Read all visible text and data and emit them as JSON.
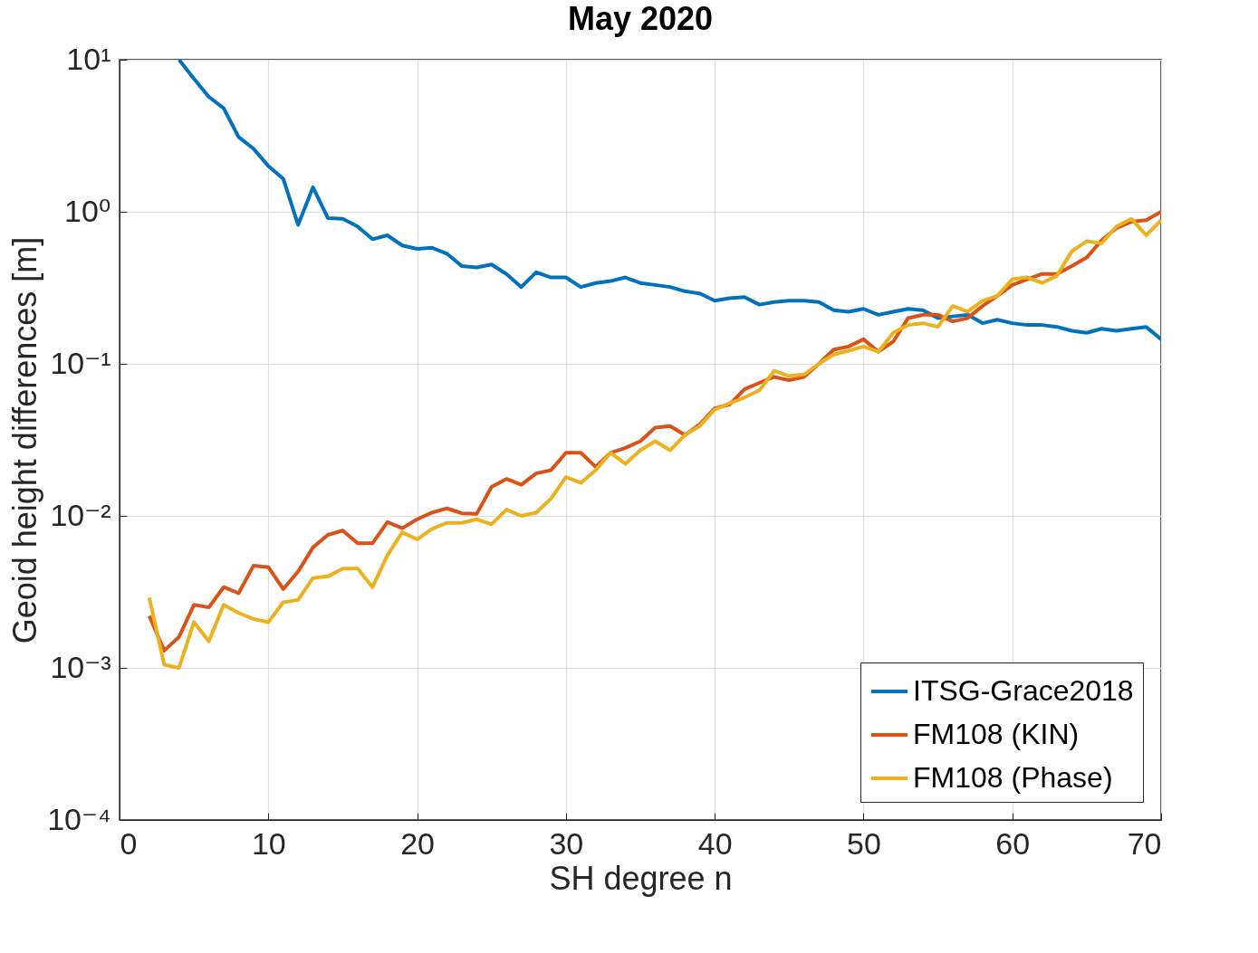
{
  "chart_data": {
    "type": "line",
    "title": "May 2020",
    "xlabel": "SH degree n",
    "ylabel": "Geoid height differences [m]",
    "x": [
      2,
      3,
      4,
      5,
      6,
      7,
      8,
      9,
      10,
      11,
      12,
      13,
      14,
      15,
      16,
      17,
      18,
      19,
      20,
      21,
      22,
      23,
      24,
      25,
      26,
      27,
      28,
      29,
      30,
      31,
      32,
      33,
      34,
      35,
      36,
      37,
      38,
      39,
      40,
      41,
      42,
      43,
      44,
      45,
      46,
      47,
      48,
      49,
      50,
      51,
      52,
      53,
      54,
      55,
      56,
      57,
      58,
      59,
      60,
      61,
      62,
      63,
      64,
      65,
      66,
      67,
      68,
      69,
      70
    ],
    "series": [
      {
        "name": "ITSG-Grace2018",
        "color": "#0072bd",
        "values": [
          null,
          null,
          10,
          7.5,
          5.7,
          4.8,
          3.1,
          2.6,
          2.0,
          1.65,
          0.82,
          1.45,
          0.91,
          0.9,
          0.8,
          0.66,
          0.7,
          0.6,
          0.57,
          0.58,
          0.53,
          0.44,
          0.43,
          0.45,
          0.39,
          0.32,
          0.4,
          0.37,
          0.37,
          0.32,
          0.34,
          0.35,
          0.37,
          0.34,
          0.33,
          0.32,
          0.3,
          0.29,
          0.26,
          0.27,
          0.275,
          0.245,
          0.255,
          0.26,
          0.26,
          0.255,
          0.225,
          0.22,
          0.23,
          0.21,
          0.22,
          0.23,
          0.225,
          0.2,
          0.205,
          0.21,
          0.185,
          0.195,
          0.185,
          0.18,
          0.18,
          0.175,
          0.165,
          0.16,
          0.17,
          0.165,
          0.17,
          0.175,
          0.145
        ]
      },
      {
        "name": "FM108 (KIN)",
        "color": "#d95319",
        "values": [
          0.0022,
          0.0013,
          0.0016,
          0.0026,
          0.0025,
          0.0034,
          0.0031,
          0.0047,
          0.0046,
          0.0033,
          0.0043,
          0.0062,
          0.0075,
          0.008,
          0.0066,
          0.0066,
          0.0091,
          0.0083,
          0.0095,
          0.0105,
          0.0112,
          0.0104,
          0.0103,
          0.0155,
          0.0175,
          0.016,
          0.019,
          0.02,
          0.026,
          0.026,
          0.021,
          0.026,
          0.028,
          0.031,
          0.038,
          0.039,
          0.034,
          0.04,
          0.051,
          0.054,
          0.068,
          0.075,
          0.082,
          0.078,
          0.082,
          0.1,
          0.124,
          0.13,
          0.145,
          0.12,
          0.14,
          0.2,
          0.21,
          0.21,
          0.19,
          0.2,
          0.24,
          0.28,
          0.33,
          0.36,
          0.39,
          0.39,
          0.44,
          0.5,
          0.65,
          0.78,
          0.86,
          0.88,
          1.0
        ]
      },
      {
        "name": "FM108 (Phase)",
        "color": "#edb120",
        "values": [
          0.0029,
          0.00105,
          0.001,
          0.002,
          0.0015,
          0.0026,
          0.0023,
          0.0021,
          0.002,
          0.0027,
          0.0028,
          0.0039,
          0.004,
          0.0045,
          0.0045,
          0.0034,
          0.0055,
          0.0078,
          0.007,
          0.0082,
          0.009,
          0.009,
          0.0095,
          0.0088,
          0.011,
          0.01,
          0.0105,
          0.013,
          0.018,
          0.0165,
          0.02,
          0.026,
          0.022,
          0.027,
          0.031,
          0.027,
          0.034,
          0.039,
          0.05,
          0.055,
          0.06,
          0.067,
          0.09,
          0.083,
          0.085,
          0.1,
          0.115,
          0.122,
          0.13,
          0.12,
          0.16,
          0.18,
          0.185,
          0.175,
          0.24,
          0.22,
          0.26,
          0.28,
          0.36,
          0.37,
          0.34,
          0.38,
          0.55,
          0.64,
          0.62,
          0.8,
          0.9,
          0.7,
          0.88
        ]
      }
    ],
    "xlim": [
      0,
      70
    ],
    "xticks": [
      0,
      10,
      20,
      30,
      40,
      50,
      60,
      70
    ],
    "ylim": [
      0.0001,
      10
    ],
    "yticks": [
      {
        "value": 0.0001,
        "label": "10⁻⁴"
      },
      {
        "value": 0.001,
        "label": "10⁻³"
      },
      {
        "value": 0.01,
        "label": "10⁻²"
      },
      {
        "value": 0.1,
        "label": "10⁻¹"
      },
      {
        "value": 1,
        "label": "10⁰"
      },
      {
        "value": 10,
        "label": "10¹"
      }
    ],
    "log": "y",
    "grid": true,
    "legend": "bottom right",
    "line_style": "solid",
    "marker": "none"
  }
}
